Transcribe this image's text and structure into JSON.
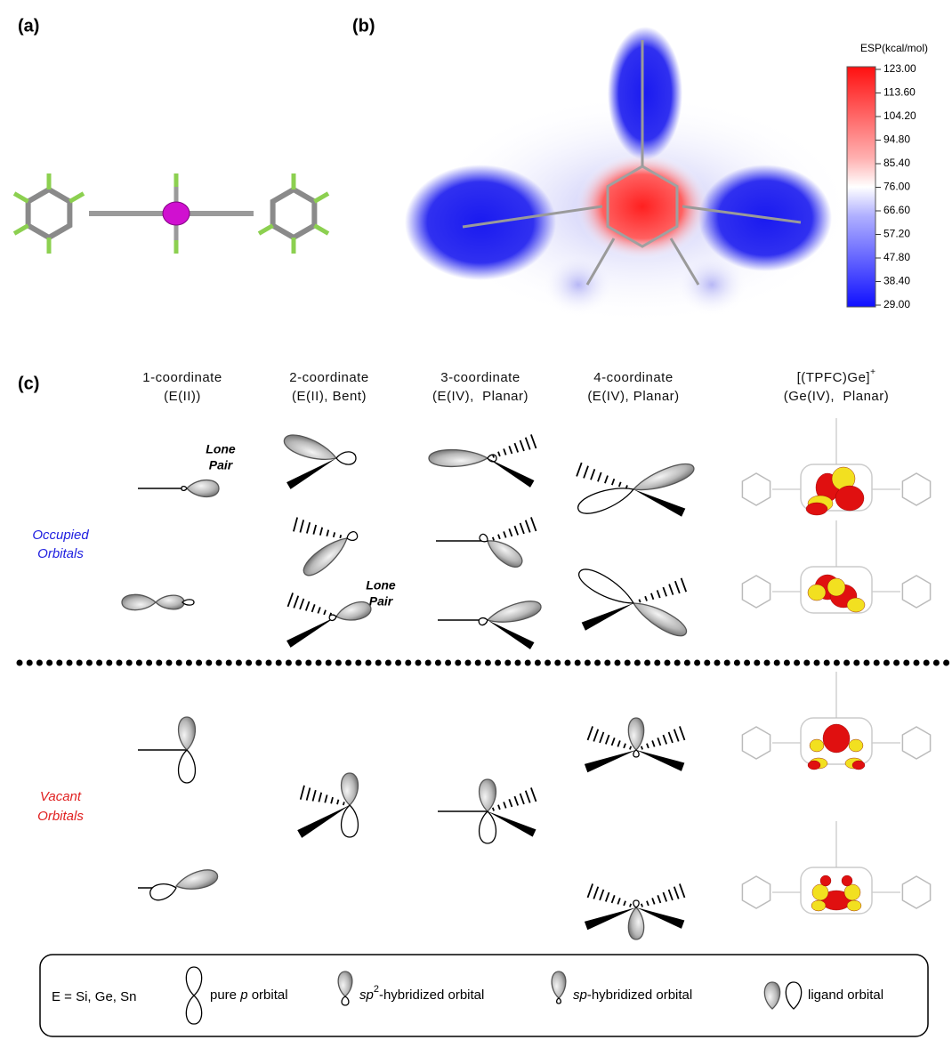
{
  "panel_a": {
    "label": "(a)"
  },
  "panel_b": {
    "label": "(b)",
    "colorbar": {
      "title": "ESP(kcal/mol)",
      "ticks": [
        "123.00",
        "113.60",
        "104.20",
        "94.80",
        "85.40",
        "76.00",
        "66.60",
        "57.20",
        "47.80",
        "38.40",
        "29.00"
      ]
    }
  },
  "panel_c": {
    "label": "(c)",
    "columns": [
      {
        "line1": "1-coordinate",
        "line2": "(E(II))"
      },
      {
        "line1": "2-coordinate",
        "line2": "(E(II), Bent)"
      },
      {
        "line1": "3-coordinate",
        "line2": "(E(IV),  Planar)"
      },
      {
        "line1": "4-coordinate",
        "line2": "(E(IV), Planar)"
      }
    ],
    "tpfc": {
      "formula": "[(TPFC)Ge]",
      "charge": "+",
      "line2": "(Ge(IV),  Planar)"
    },
    "rows": {
      "occupied": [
        "Occupied",
        "Orbitals"
      ],
      "vacant": [
        "Vacant",
        "Orbitals"
      ]
    },
    "annotations": [
      [
        "Lone",
        "Pair"
      ],
      [
        "Lone",
        "Pair"
      ]
    ]
  },
  "legend": {
    "element": "E = Si, Ge, Sn",
    "items": [
      {
        "pre": "pure ",
        "italic": "p",
        "post": " orbital"
      },
      {
        "italic": "sp",
        "sup": "2",
        "post": "-hybridized orbital"
      },
      {
        "italic": "sp",
        "post": "-hybridized orbital"
      },
      {
        "post": "ligand orbital"
      }
    ]
  }
}
